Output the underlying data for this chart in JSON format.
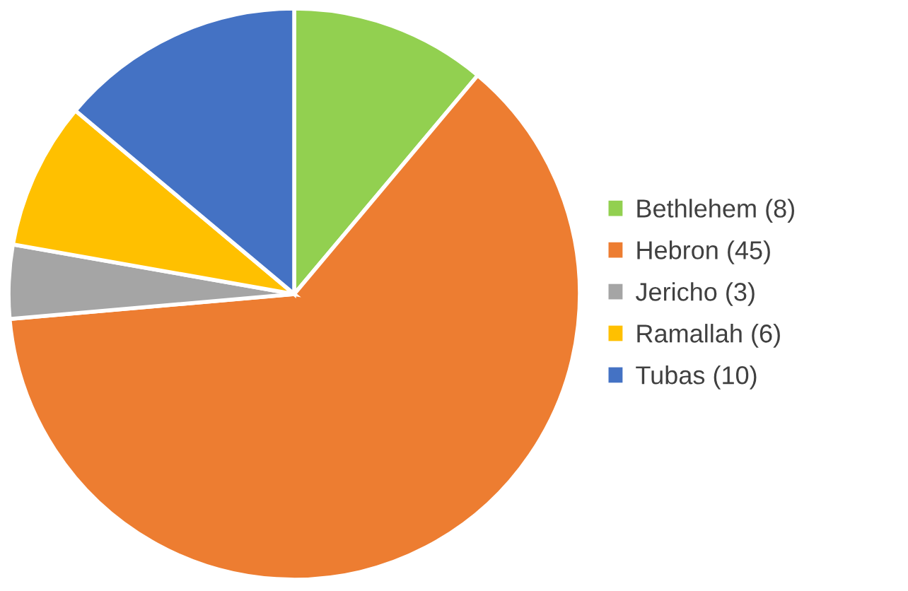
{
  "chart_data": {
    "type": "pie",
    "categories": [
      "Bethlehem (8)",
      "Hebron (45)",
      "Jericho (3)",
      "Ramallah (6)",
      "Tubas (10)"
    ],
    "values": [
      8,
      45,
      3,
      6,
      10
    ],
    "colors": [
      "#92d050",
      "#ed7d31",
      "#a5a5a5",
      "#ffc000",
      "#4472c4"
    ],
    "legend": "right"
  }
}
